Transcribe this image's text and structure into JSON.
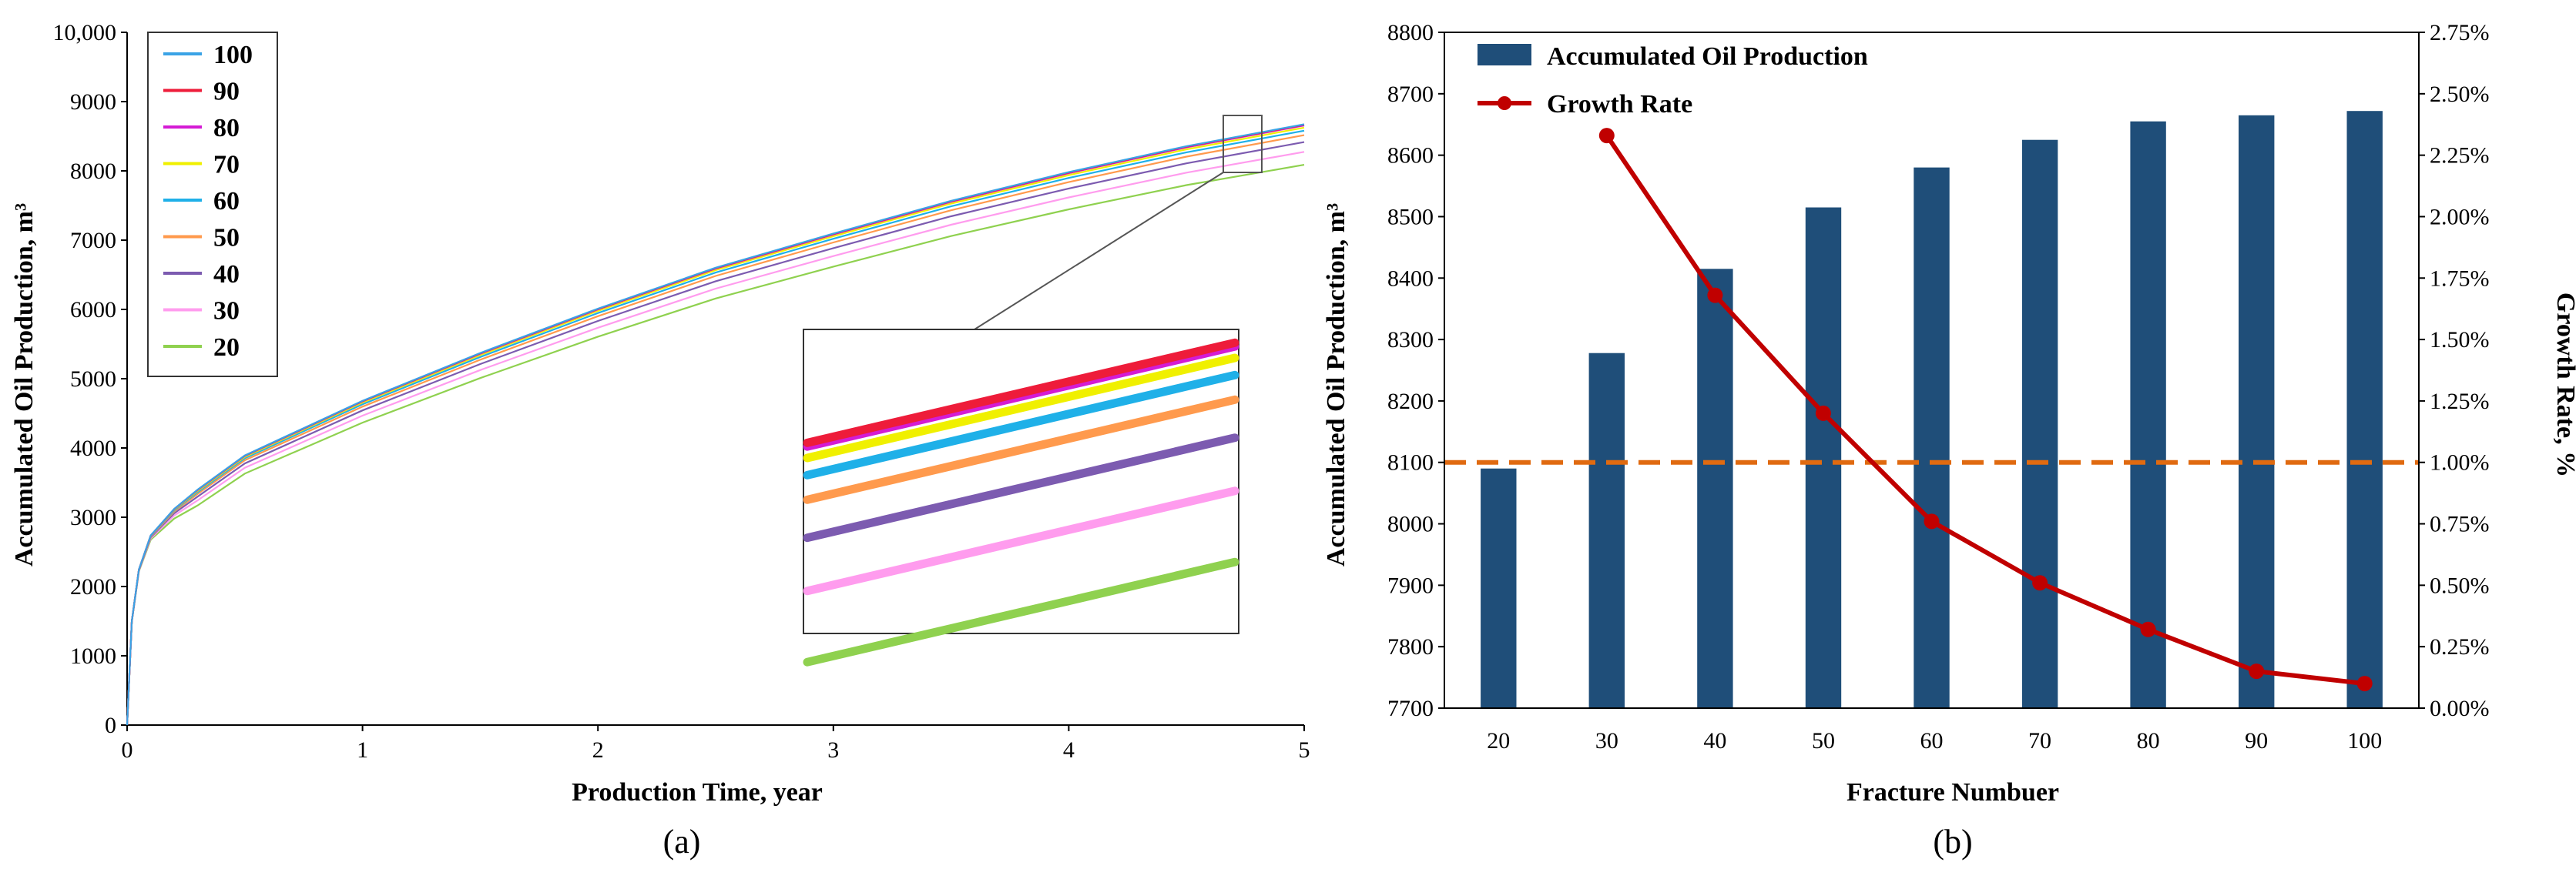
{
  "chart_data": [
    {
      "id": "a",
      "type": "line",
      "caption": "(a)",
      "xlabel": "Production Time, year",
      "ylabel": "Accumulated Oil Production, m³",
      "xlim": [
        0,
        5
      ],
      "ylim": [
        0,
        10000
      ],
      "xticks": [
        0,
        1,
        2,
        3,
        4,
        5
      ],
      "xtick_labels": [
        "0",
        "1",
        "2",
        "3",
        "4",
        "5"
      ],
      "yticks": [
        0,
        1000,
        2000,
        3000,
        4000,
        5000,
        6000,
        7000,
        8000,
        9000,
        10000
      ],
      "ytick_labels": [
        "0",
        "1000",
        "2000",
        "3000",
        "4000",
        "5000",
        "6000",
        "7000",
        "8000",
        "9000",
        "10,000"
      ],
      "x": [
        0,
        0.02,
        0.05,
        0.1,
        0.2,
        0.3,
        0.5,
        0.75,
        1,
        1.5,
        2,
        2.5,
        3,
        3.5,
        4,
        4.5,
        5
      ],
      "base_curve": [
        0,
        1500,
        2250,
        2750,
        3150,
        3450,
        3950,
        4350,
        4750,
        5450,
        6100,
        6700,
        7200,
        7680,
        8100,
        8480,
        8800
      ],
      "series": [
        {
          "name": "100",
          "color": "#3aa3e6",
          "final": 8672
        },
        {
          "name": "90",
          "color": "#ee1c3a",
          "final": 8665
        },
        {
          "name": "80",
          "color": "#d41bd4",
          "final": 8655
        },
        {
          "name": "70",
          "color": "#f0f000",
          "final": 8625
        },
        {
          "name": "60",
          "color": "#1fb0e8",
          "final": 8580
        },
        {
          "name": "50",
          "color": "#ff9a4d",
          "final": 8515
        },
        {
          "name": "40",
          "color": "#7c5bb0",
          "final": 8415
        },
        {
          "name": "30",
          "color": "#ff9cee",
          "final": 8275
        },
        {
          "name": "20",
          "color": "#8fd14f",
          "final": 8088
        }
      ],
      "inset_order": [
        "90",
        "80",
        "70",
        "60",
        "50",
        "40",
        "30",
        "20"
      ]
    },
    {
      "id": "b",
      "type": "bar",
      "caption": "(b)",
      "categories": [
        "20",
        "30",
        "40",
        "50",
        "60",
        "70",
        "80",
        "90",
        "100"
      ],
      "xlabel": "Fracture Numbuer",
      "ylabel": "Accumulated Oil Production, m³",
      "y2label": "Growth Rate, %",
      "ylim": [
        7700,
        8800
      ],
      "yticks": [
        "7700",
        "7800",
        "7900",
        "8000",
        "8100",
        "8200",
        "8300",
        "8400",
        "8500",
        "8600",
        "8700",
        "8800"
      ],
      "y2lim": [
        0,
        2.75
      ],
      "y2ticks": [
        "0.00%",
        "0.25%",
        "0.50%",
        "0.75%",
        "1.00%",
        "1.25%",
        "1.50%",
        "1.75%",
        "2.00%",
        "2.25%",
        "2.50%",
        "2.75%"
      ],
      "series": [
        {
          "name": "Accumulated Oil Production",
          "type": "bar",
          "color": "#1f4e79",
          "values": [
            8090,
            8278,
            8415,
            8515,
            8580,
            8625,
            8655,
            8665,
            8672
          ]
        },
        {
          "name": "Growth Rate",
          "type": "line",
          "axis": "right",
          "color": "#c00000",
          "values": [
            null,
            2.33,
            1.68,
            1.2,
            0.76,
            0.51,
            0.32,
            0.15,
            0.1
          ]
        }
      ],
      "reference_line": {
        "axis": "right",
        "value": 1.0,
        "color": "#e06a10",
        "style": "dashed"
      }
    }
  ]
}
